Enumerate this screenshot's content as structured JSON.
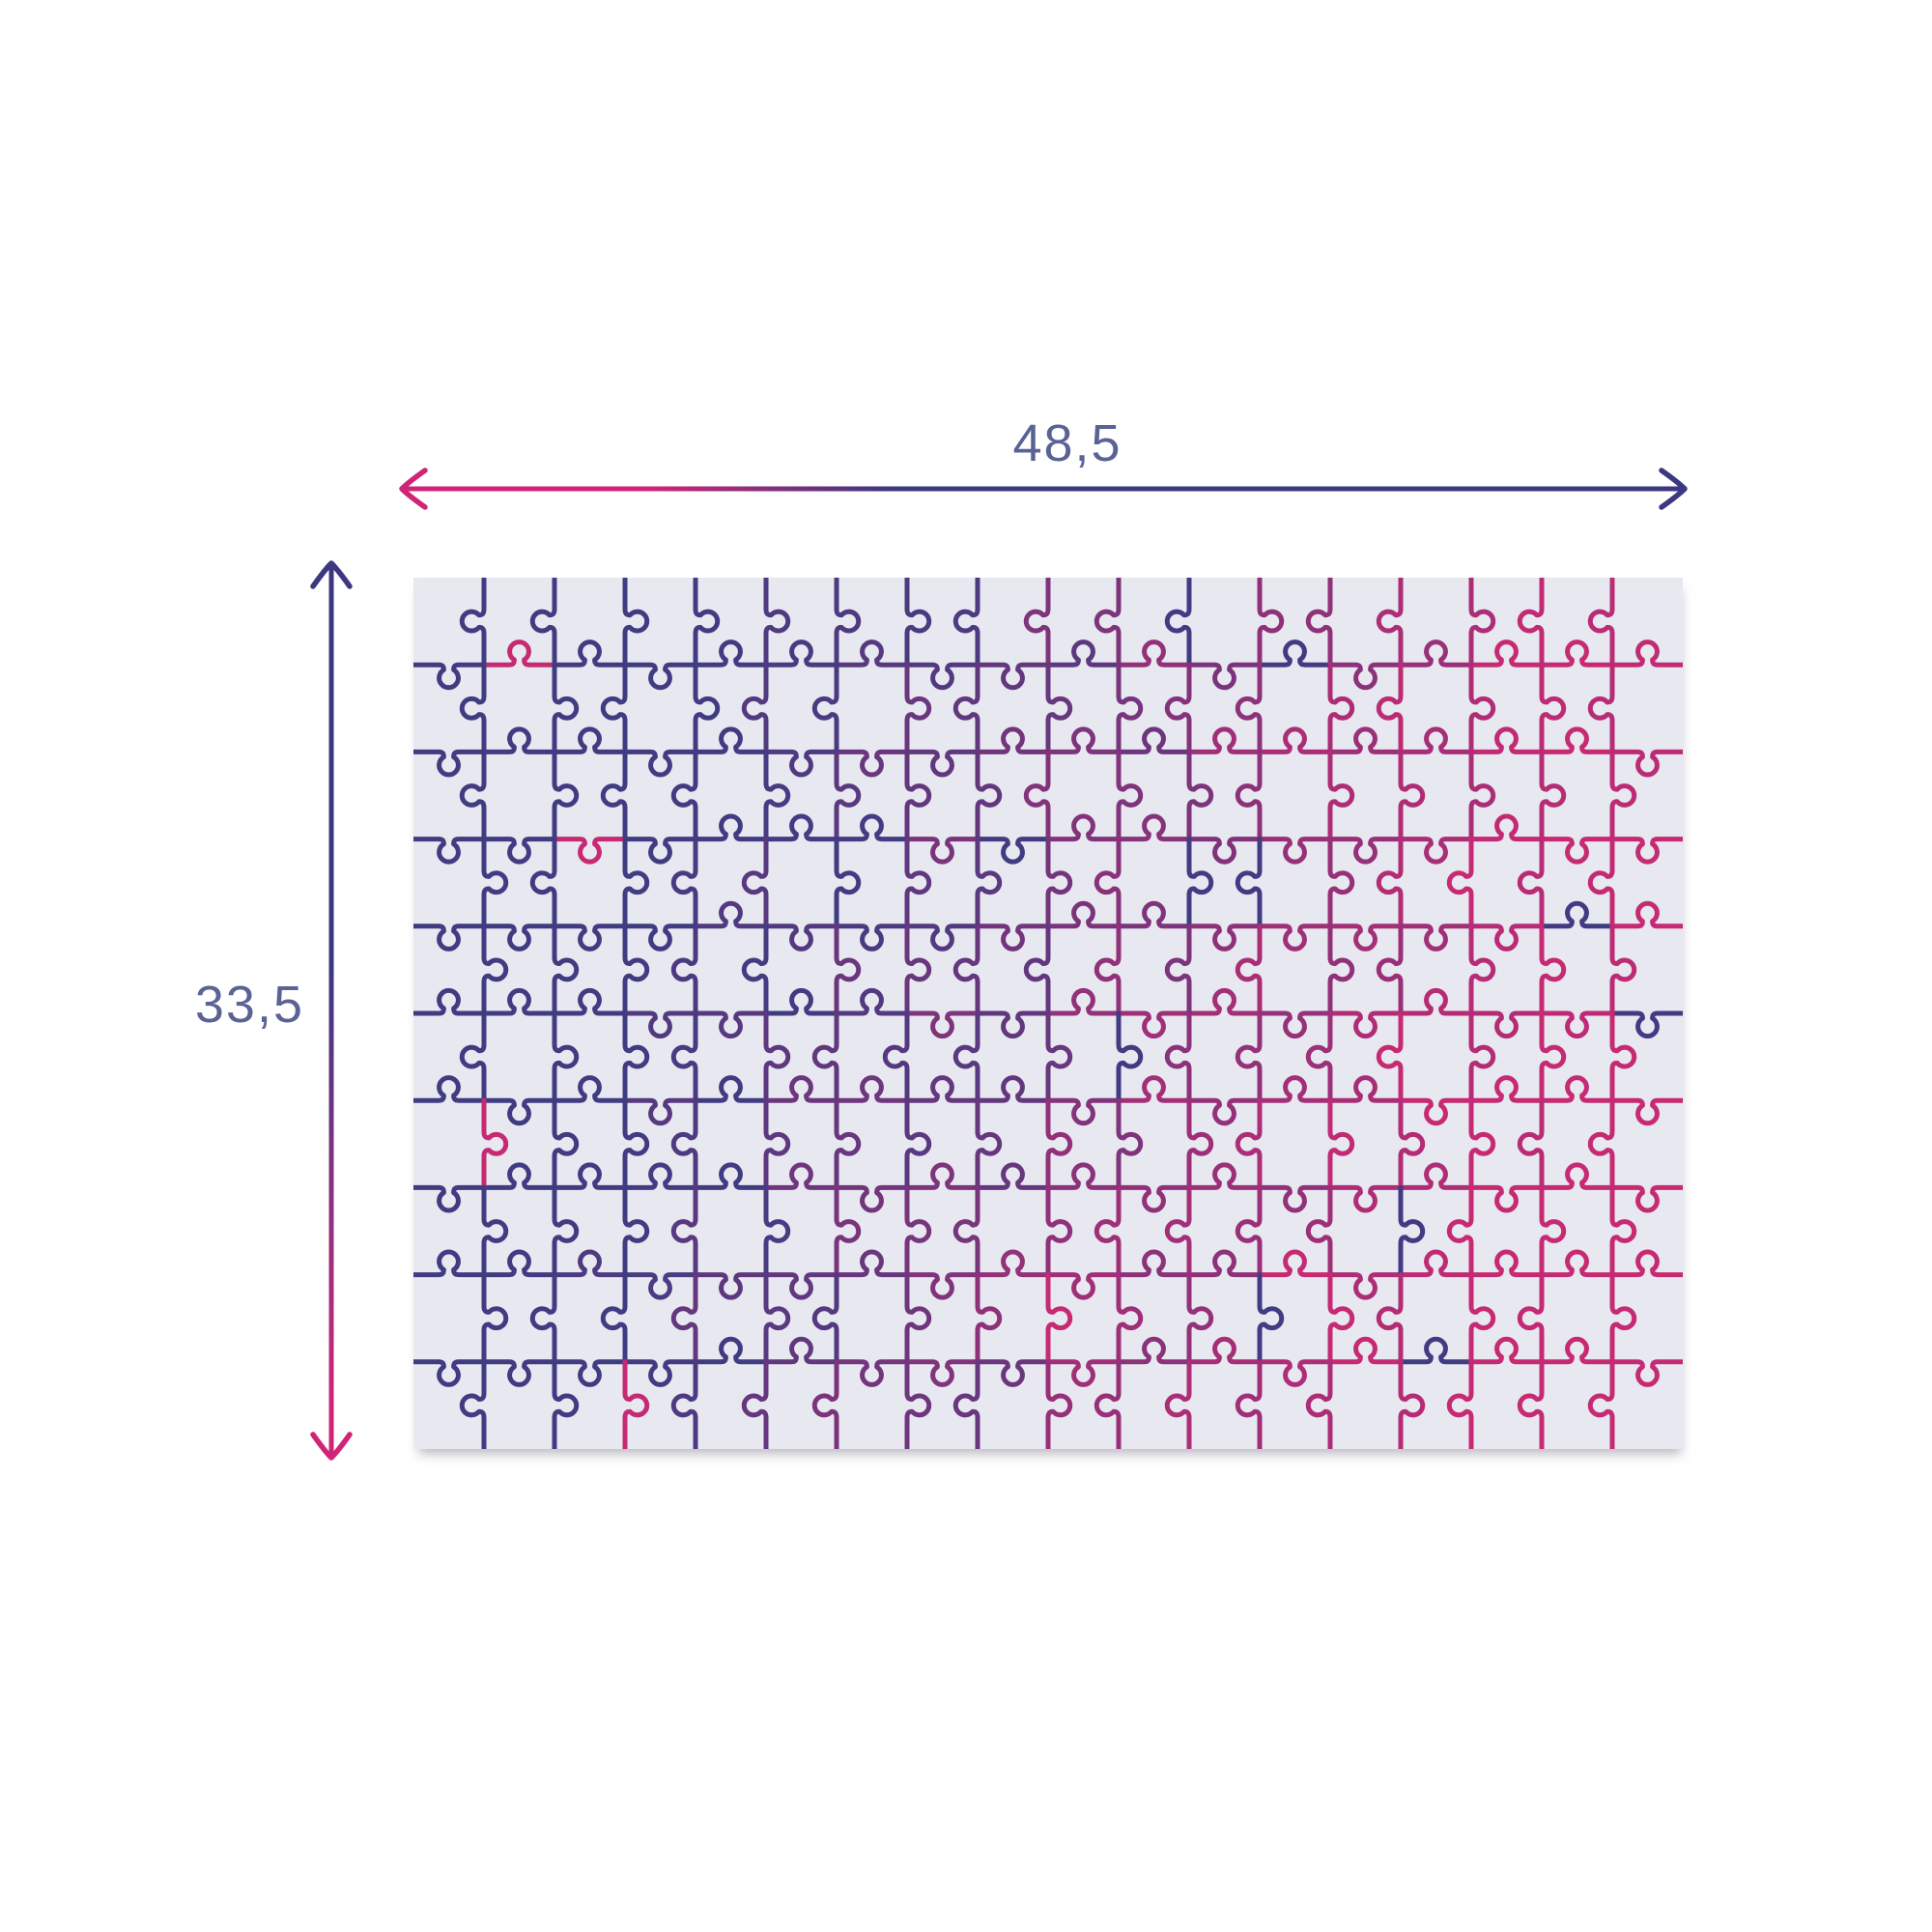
{
  "diagram": {
    "type": "product-dimensions-diagram",
    "subject": "jigsaw-puzzle",
    "width_label": "48,5",
    "height_label": "33,5",
    "label_color": "#5a6394",
    "width_arrow": {
      "color_left": "#d02577",
      "color_right": "#3c3781"
    },
    "height_arrow": {
      "color_top": "#3c3781",
      "color_bottom": "#d02577"
    },
    "puzzle": {
      "columns": 18,
      "rows": 10,
      "piece_count": 180,
      "background_color": "#e8e8f1",
      "line_color_navy": "#403c82",
      "line_color_pink": "#c62a73",
      "line_width": 5
    }
  }
}
